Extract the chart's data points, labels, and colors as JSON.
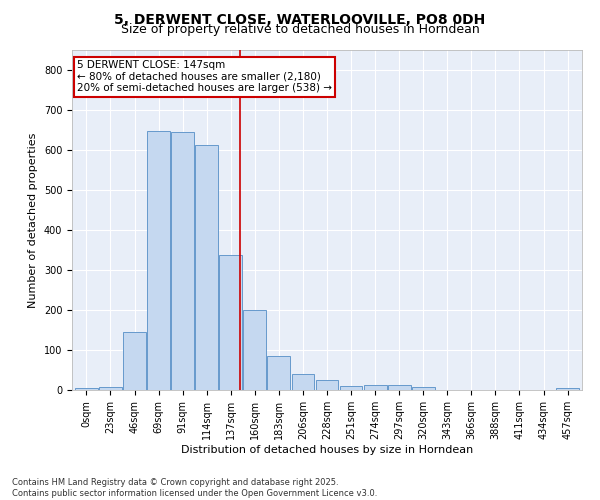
{
  "title": "5, DERWENT CLOSE, WATERLOOVILLE, PO8 0DH",
  "subtitle": "Size of property relative to detached houses in Horndean",
  "xlabel": "Distribution of detached houses by size in Horndean",
  "ylabel": "Number of detached properties",
  "bar_color": "#c5d8f0",
  "bar_edge_color": "#6699cc",
  "background_color": "#e8eef8",
  "grid_color": "#ffffff",
  "annotation_box_color": "#cc0000",
  "vline_color": "#cc0000",
  "categories": [
    "0sqm",
    "23sqm",
    "46sqm",
    "69sqm",
    "91sqm",
    "114sqm",
    "137sqm",
    "160sqm",
    "183sqm",
    "206sqm",
    "228sqm",
    "251sqm",
    "274sqm",
    "297sqm",
    "320sqm",
    "343sqm",
    "366sqm",
    "388sqm",
    "411sqm",
    "434sqm",
    "457sqm"
  ],
  "values": [
    5,
    8,
    145,
    648,
    645,
    612,
    337,
    200,
    85,
    40,
    25,
    10,
    12,
    12,
    8,
    0,
    0,
    0,
    0,
    0,
    5
  ],
  "annotation_text": "5 DERWENT CLOSE: 147sqm\n← 80% of detached houses are smaller (2,180)\n20% of semi-detached houses are larger (538) →",
  "vline_position": 6.39,
  "ylim": [
    0,
    850
  ],
  "yticks": [
    0,
    100,
    200,
    300,
    400,
    500,
    600,
    700,
    800
  ],
  "footnote": "Contains HM Land Registry data © Crown copyright and database right 2025.\nContains public sector information licensed under the Open Government Licence v3.0.",
  "title_fontsize": 10,
  "subtitle_fontsize": 9,
  "axis_label_fontsize": 8,
  "tick_fontsize": 7,
  "annotation_fontsize": 7.5,
  "footnote_fontsize": 6
}
